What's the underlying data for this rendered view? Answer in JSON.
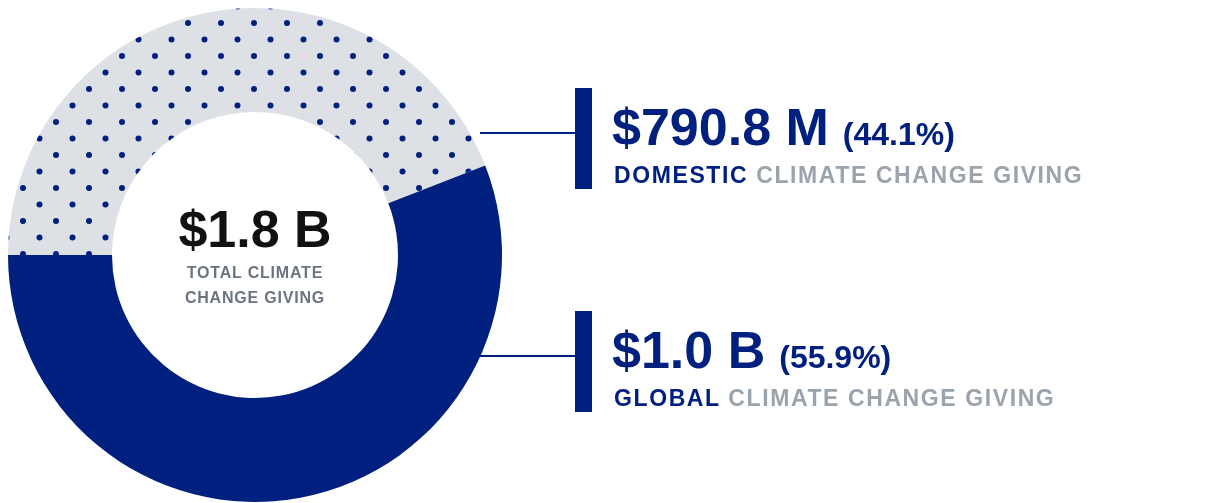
{
  "chart_data": {
    "type": "donut",
    "title": "$1.8 B",
    "subtitle": "TOTAL CLIMATE CHANGE GIVING",
    "categories": [
      "DOMESTIC CLIMATE CHANGE GIVING",
      "GLOBAL CLIMATE CHANGE GIVING"
    ],
    "values": [
      44.1,
      55.9
    ],
    "colors": [
      "#dde1e6",
      "#00207f"
    ],
    "value_labels": [
      "$790.8 M (44.1%)",
      "$1.0 B (55.9%)"
    ]
  }
}
